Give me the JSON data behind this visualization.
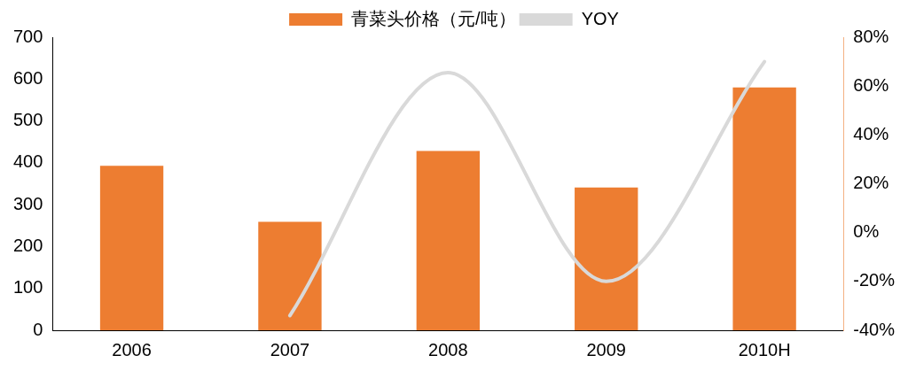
{
  "chart_data": {
    "type": "bar",
    "categories": [
      "2006",
      "2007",
      "2008",
      "2009",
      "2010H"
    ],
    "series": [
      {
        "name": "青菜头价格（元/吨）",
        "color": "#ed7d31",
        "values": [
          393,
          259,
          428,
          341,
          580
        ]
      },
      {
        "name": "YOY",
        "type": "line",
        "axis": "y2",
        "color": "#d9d9d9",
        "values": [
          null,
          -34,
          65.5,
          -20,
          70
        ]
      }
    ],
    "ylim": [
      0,
      700
    ],
    "yticks": [
      0,
      100,
      200,
      300,
      400,
      500,
      600,
      700
    ],
    "y2lim": [
      -40,
      80
    ],
    "y2ticks": [
      {
        "value": -40,
        "label": "-40%"
      },
      {
        "value": -20,
        "label": "-20%"
      },
      {
        "value": 0,
        "label": "0%"
      },
      {
        "value": 20,
        "label": "20%"
      },
      {
        "value": 40,
        "label": "40%"
      },
      {
        "value": 60,
        "label": "60%"
      },
      {
        "value": 80,
        "label": "80%"
      }
    ],
    "grid": false,
    "legend": "top",
    "marker": "none",
    "line_style": "solid"
  }
}
